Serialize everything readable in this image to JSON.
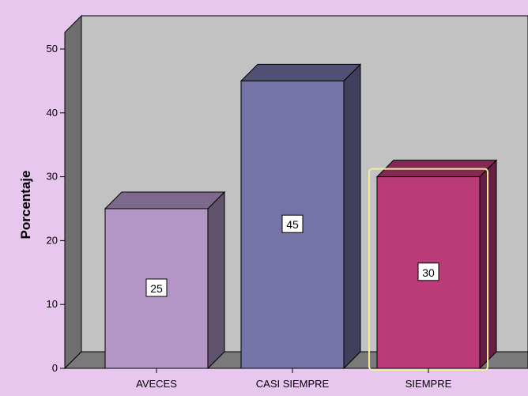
{
  "colors": {
    "background": "#e8c7ef",
    "plot_wall": "#c2c2c2",
    "left_wall": "#6f6f6f",
    "floor": "#7a7a7a",
    "bar_colors": [
      "#b396c6",
      "#7474a8",
      "#bb3a78"
    ],
    "highlight_outline": "#f2eb9c"
  },
  "chart_data": {
    "type": "bar",
    "style": "3d",
    "categories": [
      "AVECES",
      "CASI SIEMPRE",
      "SIEMPRE"
    ],
    "values": [
      25,
      45,
      30
    ],
    "data_labels": [
      "25",
      "45",
      "30"
    ],
    "title": "",
    "xlabel": "",
    "ylabel": "Porcentaje",
    "ylim": [
      0,
      50
    ],
    "yticks": [
      "0",
      "10",
      "20",
      "30",
      "40",
      "50"
    ],
    "grid": false,
    "legend": "none",
    "highlighted_category": "SIEMPRE"
  }
}
